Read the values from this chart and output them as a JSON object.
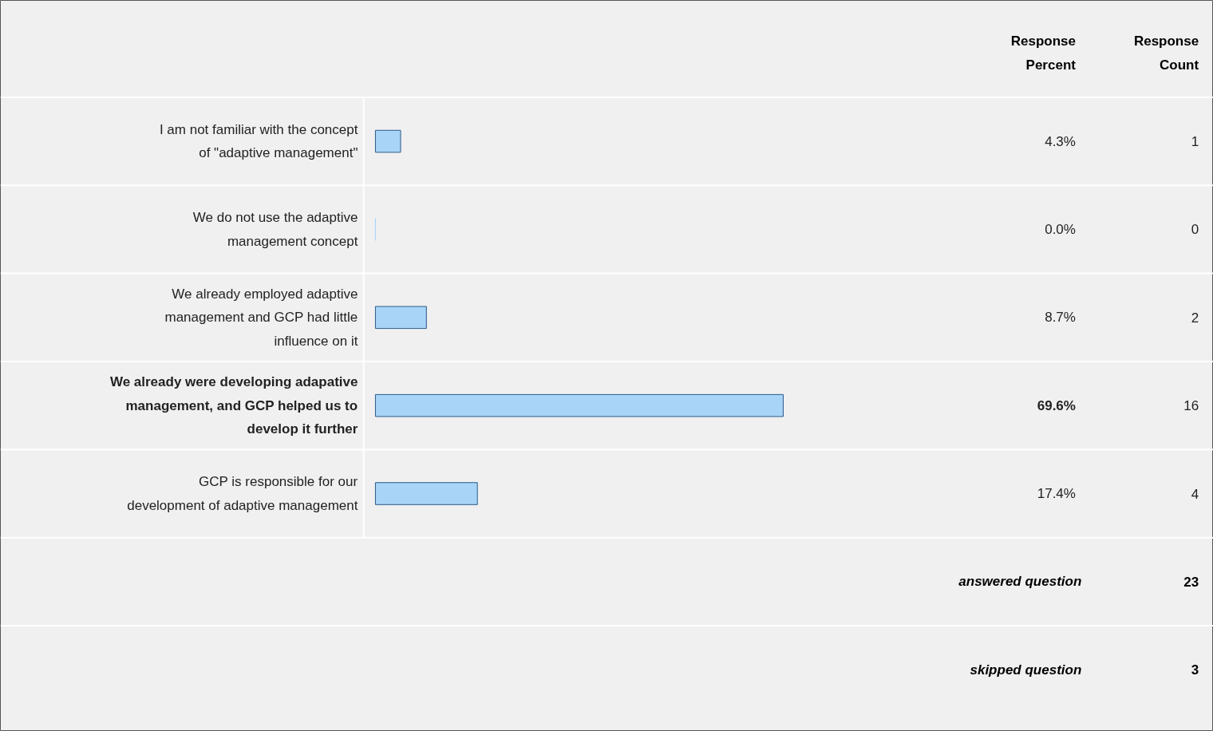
{
  "chart_data": {
    "type": "bar",
    "orientation": "horizontal",
    "categories": [
      "I am not familiar with the concept of \"adaptive management\"",
      "We do not use the adaptive management concept",
      "We already employed adaptive management and GCP had little influence on it",
      "We already were developing adapative management, and GCP helped us to develop it further",
      "GCP is responsible for our development of adaptive management"
    ],
    "values": [
      4.3,
      0.0,
      8.7,
      69.6,
      17.4
    ],
    "color": "#a8d4f8",
    "value_labels": [
      "4.3%",
      "0.0%",
      "8.7%",
      "69.6%",
      "17.4%"
    ],
    "tick_labels": false,
    "grid": false,
    "annotations": [
      "Response Percent",
      "Response Count",
      "1",
      "0",
      "2",
      "16",
      "4",
      "answered question",
      "23",
      "skipped question",
      "3"
    ]
  }
}
